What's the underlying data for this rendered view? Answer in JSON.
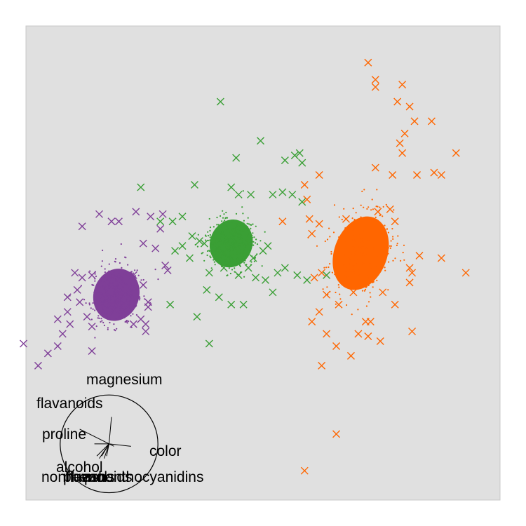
{
  "chart_data": {
    "type": "scatter",
    "title": "",
    "xlabel": "",
    "ylabel": "",
    "xlim": [
      -4.7,
      5.0
    ],
    "ylim": [
      -4.2,
      5.5
    ],
    "grid": false,
    "legend": "none",
    "panel_color": "#e0e0e0",
    "series": [
      {
        "color": "#7f3f98",
        "marker": "dense-cloud",
        "center": [
          -2.85,
          0.0
        ],
        "spread": [
          0.3,
          0.35
        ],
        "tilt_deg": 20,
        "outliers": [
          [
            -3.55,
            1.4
          ],
          [
            -3.2,
            1.65
          ],
          [
            -2.95,
            1.5
          ],
          [
            -2.8,
            1.5
          ],
          [
            -2.45,
            1.7
          ],
          [
            -2.15,
            1.6
          ],
          [
            -2.3,
            1.05
          ],
          [
            -2.05,
            0.95
          ],
          [
            -1.95,
            1.35
          ],
          [
            -1.9,
            1.65
          ],
          [
            -1.85,
            0.6
          ],
          [
            -1.8,
            0.5
          ],
          [
            -2.5,
            0.4
          ],
          [
            -2.3,
            0.2
          ],
          [
            -2.2,
            -0.15
          ],
          [
            -2.2,
            -0.25
          ],
          [
            -2.25,
            -0.6
          ],
          [
            -2.5,
            -0.6
          ],
          [
            -2.35,
            -0.5
          ],
          [
            -2.25,
            -0.75
          ],
          [
            -3.35,
            0.4
          ],
          [
            -3.7,
            0.45
          ],
          [
            -3.55,
            0.35
          ],
          [
            -3.65,
            0.1
          ],
          [
            -3.85,
            -0.05
          ],
          [
            -3.6,
            -0.15
          ],
          [
            -3.85,
            -0.35
          ],
          [
            -4.05,
            -0.5
          ],
          [
            -3.8,
            -0.6
          ],
          [
            -3.45,
            -0.45
          ],
          [
            -3.35,
            -0.65
          ],
          [
            -3.95,
            -0.8
          ],
          [
            -4.05,
            -1.05
          ],
          [
            -4.25,
            -1.2
          ],
          [
            -3.35,
            -1.15
          ],
          [
            -4.45,
            -1.45
          ],
          [
            -4.75,
            -1.0
          ]
        ]
      },
      {
        "color": "#3a9f35",
        "marker": "dense-cloud",
        "center": [
          -0.5,
          1.05
        ],
        "spread": [
          0.28,
          0.32
        ],
        "tilt_deg": 20,
        "outliers": [
          [
            -0.72,
            3.95
          ],
          [
            -0.4,
            2.8
          ],
          [
            0.1,
            3.15
          ],
          [
            0.6,
            2.75
          ],
          [
            0.8,
            2.85
          ],
          [
            0.9,
            2.9
          ],
          [
            0.95,
            2.7
          ],
          [
            -2.35,
            2.2
          ],
          [
            -1.25,
            2.25
          ],
          [
            -0.5,
            2.2
          ],
          [
            -0.35,
            2.05
          ],
          [
            -0.1,
            2.05
          ],
          [
            0.35,
            2.05
          ],
          [
            0.55,
            2.1
          ],
          [
            0.75,
            2.05
          ],
          [
            0.95,
            1.9
          ],
          [
            -1.95,
            1.5
          ],
          [
            -1.5,
            1.6
          ],
          [
            -1.7,
            1.5
          ],
          [
            -1.5,
            1.0
          ],
          [
            -1.3,
            1.2
          ],
          [
            -1.15,
            1.1
          ],
          [
            -1.05,
            1.05
          ],
          [
            -0.85,
            1.0
          ],
          [
            -0.05,
            0.75
          ],
          [
            0.15,
            0.9
          ],
          [
            0.25,
            1.0
          ],
          [
            -1.65,
            0.9
          ],
          [
            -1.35,
            0.75
          ],
          [
            -0.95,
            0.45
          ],
          [
            -0.65,
            0.55
          ],
          [
            -0.35,
            0.4
          ],
          [
            -0.15,
            0.55
          ],
          [
            0.0,
            0.35
          ],
          [
            0.2,
            0.3
          ],
          [
            0.45,
            0.45
          ],
          [
            0.6,
            0.55
          ],
          [
            0.85,
            0.4
          ],
          [
            1.05,
            0.3
          ],
          [
            1.45,
            0.4
          ],
          [
            -1.0,
            0.1
          ],
          [
            -0.75,
            -0.05
          ],
          [
            -0.5,
            -0.2
          ],
          [
            -0.25,
            -0.2
          ],
          [
            0.35,
            0.05
          ],
          [
            -1.2,
            -0.45
          ],
          [
            -1.75,
            -0.2
          ],
          [
            -0.95,
            -1.0
          ]
        ]
      },
      {
        "color": "#ff6600",
        "marker": "dense-cloud",
        "center": [
          2.15,
          0.85
        ],
        "spread": [
          0.35,
          0.5
        ],
        "tilt_deg": 20,
        "outliers": [
          [
            2.3,
            4.75
          ],
          [
            2.45,
            4.4
          ],
          [
            2.45,
            4.25
          ],
          [
            3.0,
            4.3
          ],
          [
            2.9,
            3.95
          ],
          [
            3.15,
            3.85
          ],
          [
            3.25,
            3.55
          ],
          [
            3.6,
            3.55
          ],
          [
            3.05,
            3.3
          ],
          [
            2.95,
            3.1
          ],
          [
            3.0,
            2.9
          ],
          [
            4.1,
            2.9
          ],
          [
            2.45,
            2.6
          ],
          [
            2.8,
            2.45
          ],
          [
            3.3,
            2.45
          ],
          [
            3.65,
            2.5
          ],
          [
            3.8,
            2.45
          ],
          [
            1.3,
            2.45
          ],
          [
            1.0,
            2.25
          ],
          [
            1.05,
            1.95
          ],
          [
            0.55,
            1.5
          ],
          [
            1.1,
            1.55
          ],
          [
            1.3,
            1.45
          ],
          [
            1.15,
            1.25
          ],
          [
            1.85,
            1.55
          ],
          [
            2.85,
            1.5
          ],
          [
            2.75,
            1.75
          ],
          [
            2.5,
            1.7
          ],
          [
            3.35,
            0.8
          ],
          [
            3.15,
            0.55
          ],
          [
            3.8,
            0.75
          ],
          [
            1.35,
            0.45
          ],
          [
            3.15,
            0.25
          ],
          [
            1.2,
            0.35
          ],
          [
            1.45,
            0.0
          ],
          [
            1.7,
            -0.2
          ],
          [
            2.0,
            0.05
          ],
          [
            2.6,
            0.05
          ],
          [
            2.85,
            -0.2
          ],
          [
            1.3,
            -0.35
          ],
          [
            1.15,
            -0.55
          ],
          [
            2.25,
            -0.55
          ],
          [
            3.2,
            -0.75
          ],
          [
            1.65,
            -1.05
          ],
          [
            1.45,
            -0.8
          ],
          [
            2.1,
            -0.8
          ],
          [
            1.95,
            -1.25
          ],
          [
            1.35,
            -1.45
          ],
          [
            2.55,
            -0.95
          ],
          [
            1.65,
            -2.85
          ],
          [
            1.0,
            -3.6
          ],
          [
            2.35,
            -0.55
          ],
          [
            3.2,
            0.45
          ],
          [
            2.3,
            -0.85
          ],
          [
            4.3,
            0.45
          ]
        ]
      }
    ],
    "biplot": {
      "center": [
        -3.0,
        -3.05
      ],
      "radius": 1.0,
      "arrows": [
        {
          "name": "magnesium",
          "tip": [
            -2.95,
            -2.5
          ]
        },
        {
          "name": "flavanoids",
          "tip": [
            -3.6,
            -2.75
          ]
        },
        {
          "name": "proline",
          "tip": [
            -3.3,
            -3.05
          ]
        },
        {
          "name": "color",
          "tip": [
            -2.55,
            -3.1
          ]
        },
        {
          "name": "alcohol",
          "tip": [
            -3.2,
            -3.35
          ]
        },
        {
          "name": "nonflavanoids",
          "tip": [
            -3.15,
            -3.3
          ]
        },
        {
          "name": "phenols",
          "tip": [
            -3.25,
            -3.3
          ]
        },
        {
          "name": "ash",
          "tip": [
            -3.05,
            -3.3
          ]
        },
        {
          "name": "hue",
          "tip": [
            -2.9,
            -3.1
          ]
        },
        {
          "name": "proanthocyanidins",
          "tip": [
            -3.1,
            -3.35
          ]
        }
      ],
      "labels": [
        {
          "text": "magnesium"
        },
        {
          "text": "flavanoids"
        },
        {
          "text": "proline"
        },
        {
          "text": "color"
        },
        {
          "text": "alcohol"
        },
        {
          "text": "nonflavanoids"
        },
        {
          "text": "phenols"
        },
        {
          "text": "ash"
        },
        {
          "text": "hue"
        },
        {
          "text": "proanthocyanidins"
        }
      ]
    }
  }
}
